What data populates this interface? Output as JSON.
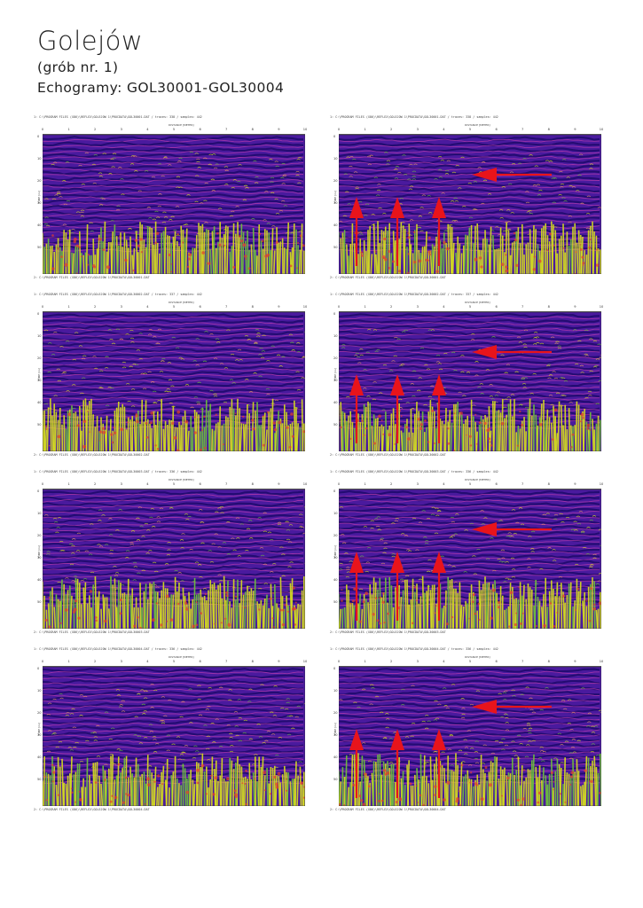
{
  "header": {
    "title": "Golejów",
    "subtitle_1": "(grób nr. 1)",
    "subtitle_2": "Echogramy: GOL30001-GOL30004"
  },
  "colors": {
    "background": "#4a1a9e",
    "stripe_dark": "#1c0a6a",
    "stripe_pink": "#c23fae",
    "noise_yellow": "#d8e21c",
    "noise_green": "#6fc43a",
    "arrow_red": "#e8141b"
  },
  "axis": {
    "distance_label": "DISTANCE [METER]",
    "time_label": "TIME [ns]",
    "x_ticks": [
      "0",
      "1",
      "2",
      "3",
      "4",
      "5",
      "6",
      "7",
      "8",
      "9",
      "10"
    ],
    "y_ticks": [
      "0",
      "10",
      "20",
      "30",
      "40",
      "50"
    ]
  },
  "rows": [
    {
      "top_path": "1: C:\\PROGRAM FILES (X86)\\REFLEX\\GOLEJOW 1\\PROCDATA\\GOL30001.DAT / traces: 338 / samples: 442",
      "bottom_path": "2: C:\\PROGRAM FILES (X86)\\REFLEX\\GOLEJOW 1\\PROCDATA\\GOL30001.DAT"
    },
    {
      "top_path": "1: C:\\PROGRAM FILES (X86)\\REFLEX\\GOLEJOW 1\\PROCDATA\\GOL30002.DAT / traces: 337 / samples: 442",
      "bottom_path": "2: C:\\PROGRAM FILES (X86)\\REFLEX\\GOLEJOW 1\\PROCDATA\\GOL30002.DAT"
    },
    {
      "top_path": "1: C:\\PROGRAM FILES (X86)\\REFLEX\\GOLEJOW 1\\PROCDATA\\GOL30003.DAT / traces: 336 / samples: 442",
      "bottom_path": "2: C:\\PROGRAM FILES (X86)\\REFLEX\\GOLEJOW 1\\PROCDATA\\GOL30003.DAT"
    },
    {
      "top_path": "1: C:\\PROGRAM FILES (X86)\\REFLEX\\GOLEJOW 1\\PROCDATA\\GOL30004.DAT / traces: 336 / samples: 442",
      "bottom_path": "2: C:\\PROGRAM FILES (X86)\\REFLEX\\GOLEJOW 1\\PROCDATA\\GOL30004.DAT"
    }
  ],
  "arrow_icons": "arrow-up-icon, arrow-left-icon"
}
